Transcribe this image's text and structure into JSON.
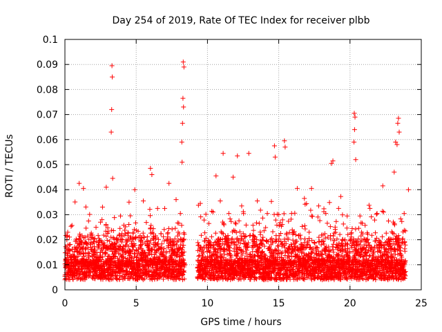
{
  "chart_data": {
    "type": "scatter",
    "title": "Day 254 of 2019, Rate Of TEC Index for receiver plbb",
    "xlabel": "GPS time / hours",
    "ylabel": "ROTI / TECUs",
    "xlim": [
      0,
      25
    ],
    "ylim": [
      0,
      0.1
    ],
    "xticks": [
      0,
      5,
      10,
      15,
      20,
      25
    ],
    "xtick_labels": [
      "0",
      "5",
      "10",
      "15",
      "20",
      "25"
    ],
    "yticks": [
      0,
      0.01,
      0.02,
      0.03,
      0.04,
      0.05,
      0.06,
      0.07,
      0.08,
      0.09,
      0.1
    ],
    "ytick_labels": [
      "0",
      "0.01",
      "0.02",
      "0.03",
      "0.04",
      "0.05",
      "0.06",
      "0.07",
      "0.08",
      "0.09",
      "0.1"
    ],
    "grid": true,
    "marker": "+",
    "marker_color": "#ff0000",
    "data_gap_hours": [
      8.4,
      9.3
    ],
    "series": [
      {
        "name": "ROTI",
        "points": [
          [
            3.3,
            0.0895
          ],
          [
            3.32,
            0.085
          ],
          [
            3.28,
            0.072
          ],
          [
            3.25,
            0.063
          ],
          [
            8.3,
            0.091
          ],
          [
            8.35,
            0.089
          ],
          [
            8.28,
            0.0765
          ],
          [
            8.32,
            0.073
          ],
          [
            8.25,
            0.0665
          ],
          [
            8.2,
            0.059
          ],
          [
            8.22,
            0.051
          ],
          [
            20.3,
            0.0705
          ],
          [
            20.35,
            0.069
          ],
          [
            20.32,
            0.064
          ],
          [
            20.28,
            0.059
          ],
          [
            20.4,
            0.052
          ],
          [
            23.4,
            0.0685
          ],
          [
            23.35,
            0.0665
          ],
          [
            23.45,
            0.063
          ],
          [
            23.2,
            0.059
          ],
          [
            23.3,
            0.058
          ],
          [
            15.4,
            0.0595
          ],
          [
            15.45,
            0.057
          ],
          [
            14.7,
            0.0575
          ],
          [
            14.75,
            0.053
          ],
          [
            11.1,
            0.0545
          ],
          [
            12.1,
            0.0535
          ],
          [
            12.9,
            0.0545
          ],
          [
            18.8,
            0.0515
          ],
          [
            18.7,
            0.0505
          ],
          [
            6.0,
            0.0485
          ],
          [
            6.1,
            0.046
          ],
          [
            1.0,
            0.0425
          ],
          [
            1.3,
            0.0405
          ],
          [
            2.9,
            0.041
          ],
          [
            3.35,
            0.0445
          ],
          [
            4.9,
            0.04
          ],
          [
            7.3,
            0.0425
          ],
          [
            10.6,
            0.0455
          ],
          [
            11.8,
            0.045
          ],
          [
            16.3,
            0.0405
          ],
          [
            17.3,
            0.0405
          ],
          [
            22.3,
            0.0415
          ],
          [
            23.1,
            0.047
          ],
          [
            24.1,
            0.04
          ],
          [
            0.3,
            0.0155
          ],
          [
            0.8,
            0.013
          ],
          [
            1.5,
            0.0185
          ],
          [
            2.1,
            0.0205
          ],
          [
            2.6,
            0.028
          ],
          [
            3.9,
            0.0295
          ],
          [
            4.5,
            0.035
          ],
          [
            5.5,
            0.0355
          ],
          [
            6.5,
            0.0325
          ],
          [
            7.0,
            0.0325
          ],
          [
            7.8,
            0.036
          ],
          [
            8.1,
            0.0305
          ],
          [
            9.5,
            0.0345
          ],
          [
            10.1,
            0.0265
          ],
          [
            10.9,
            0.0355
          ],
          [
            11.5,
            0.0305
          ],
          [
            12.4,
            0.0335
          ],
          [
            13.5,
            0.0355
          ],
          [
            14.2,
            0.0305
          ],
          [
            15.9,
            0.0305
          ],
          [
            16.8,
            0.0365
          ],
          [
            17.8,
            0.0335
          ],
          [
            18.3,
            0.0305
          ],
          [
            19.2,
            0.0325
          ],
          [
            19.8,
            0.0295
          ],
          [
            20.7,
            0.0295
          ],
          [
            21.4,
            0.0325
          ],
          [
            21.9,
            0.0305
          ],
          [
            22.7,
            0.0275
          ],
          [
            23.8,
            0.0305
          ]
        ]
      }
    ]
  }
}
